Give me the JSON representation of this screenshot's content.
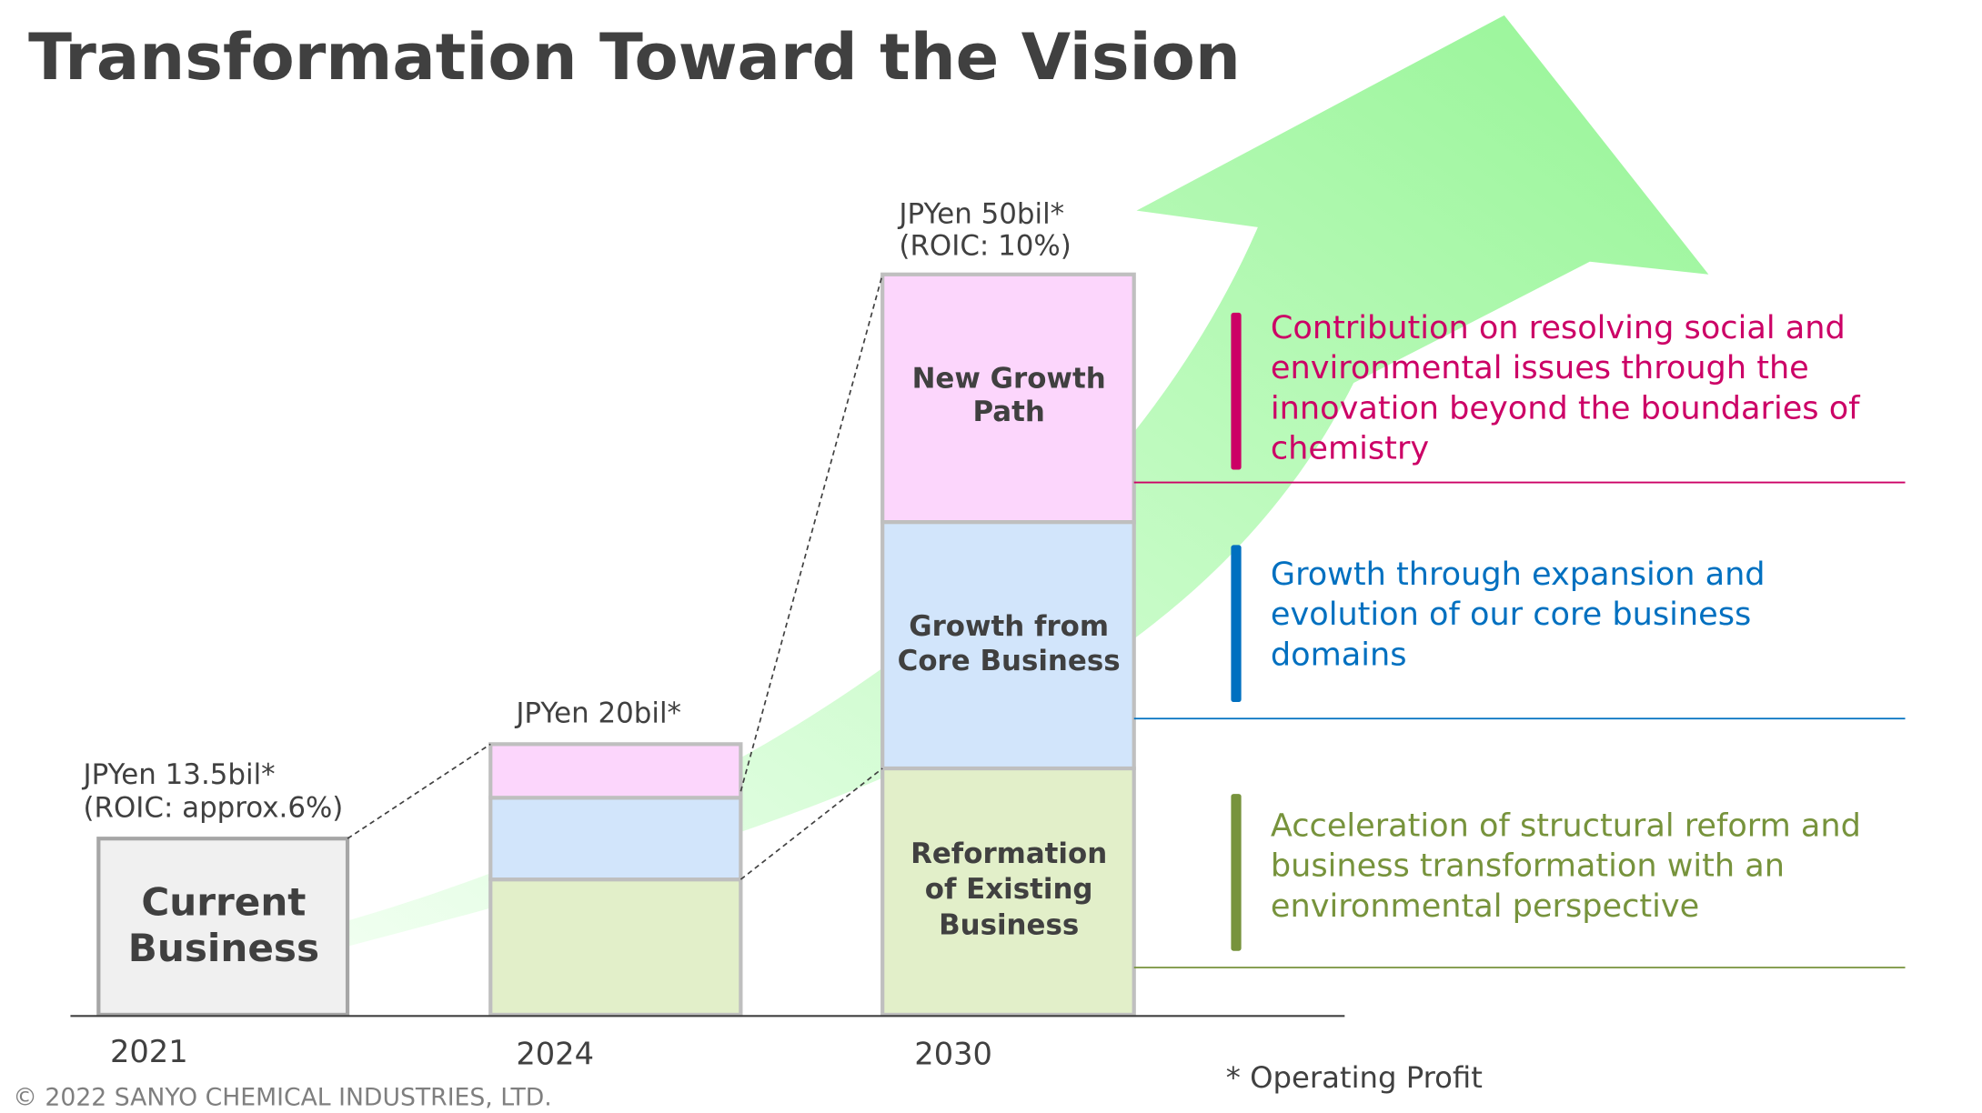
{
  "title": "Transformation Toward the Vision",
  "columns": [
    {
      "year": "2021",
      "label": [
        "JPYen 13.5bil*",
        "(ROIC: approx.6%)"
      ],
      "block": [
        "Current",
        "Business"
      ]
    },
    {
      "year": "2024",
      "label": [
        "JPYen 20bil*"
      ]
    },
    {
      "year": "2030",
      "label": [
        "JPYen 50bil*",
        "(ROIC: 10%)"
      ],
      "segments": [
        [
          "Reformation",
          "of Existing",
          "Business"
        ],
        [
          "Growth from",
          "Core Business"
        ],
        [
          "New Growth",
          "Path"
        ]
      ]
    }
  ],
  "pillars": [
    {
      "lines": [
        "Contribution on resolving social and",
        "environmental issues through the",
        "innovation beyond the boundaries of",
        "chemistry"
      ],
      "color": "#cc0066"
    },
    {
      "lines": [
        "Growth through expansion and",
        "evolution of our core business",
        "domains"
      ],
      "color": "#0070c0"
    },
    {
      "lines": [
        "Acceleration of structural reform and",
        "business transformation with an",
        "environmental perspective"
      ],
      "color": "#77933c"
    }
  ],
  "footnote": "* Operating Profit",
  "copyright": "© 2022 SANYO CHEMICAL INDUSTRIES, LTD."
}
